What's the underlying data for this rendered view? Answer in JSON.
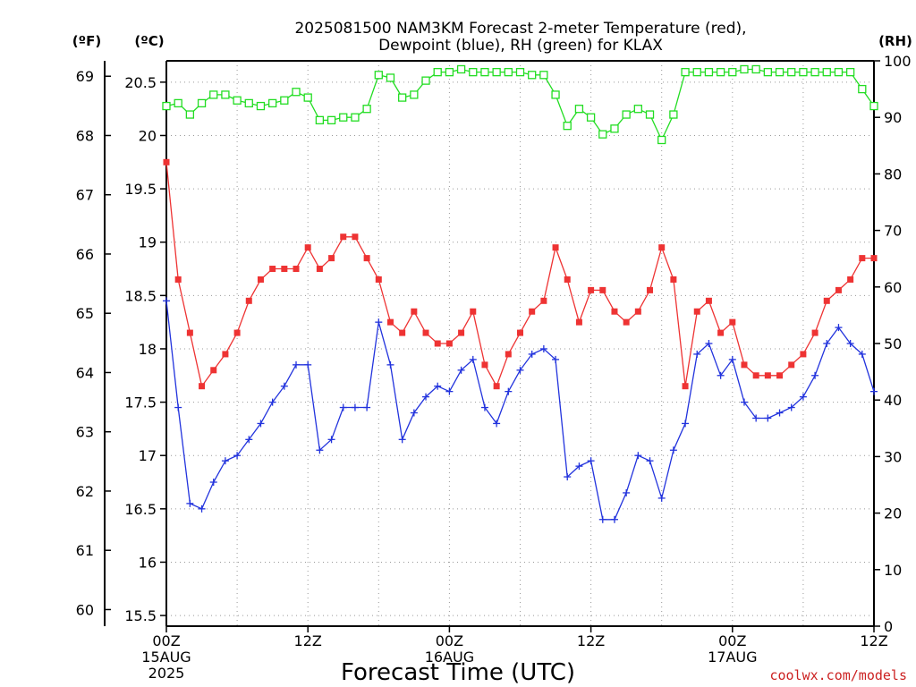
{
  "chart_data": {
    "type": "line",
    "title_line1": "2025081500 NAM3KM Forecast 2-meter Temperature (red),",
    "title_line2": "Dewpoint (blue), RH (green) for KLAX",
    "xlabel": "Forecast Time (UTC)",
    "credit": "coolwx.com/models",
    "axis_units": {
      "f": "(ºF)",
      "c": "(ºC)",
      "rh": "(RH)"
    },
    "x_range_hours": [
      0,
      60
    ],
    "y_celsius_range": [
      15.4,
      20.7
    ],
    "y_rh_range": [
      0,
      100
    ],
    "celsius_ticks": [
      "15.5",
      "16",
      "16.5",
      "17",
      "17.5",
      "18",
      "18.5",
      "19",
      "19.5",
      "20",
      "20.5"
    ],
    "fahrenheit_ticks": [
      "60",
      "61",
      "62",
      "63",
      "64",
      "65",
      "66",
      "67",
      "68",
      "69"
    ],
    "rh_ticks": [
      "0",
      "10",
      "20",
      "30",
      "40",
      "50",
      "60",
      "70",
      "80",
      "90",
      "100"
    ],
    "x_ticks": [
      {
        "hour": 0,
        "line1": "00Z",
        "line2": "15AUG",
        "line3": "2025"
      },
      {
        "hour": 12,
        "line1": "12Z",
        "line2": "",
        "line3": ""
      },
      {
        "hour": 24,
        "line1": "00Z",
        "line2": "16AUG",
        "line3": ""
      },
      {
        "hour": 36,
        "line1": "12Z",
        "line2": "",
        "line3": ""
      },
      {
        "hour": 48,
        "line1": "00Z",
        "line2": "17AUG",
        "line3": ""
      },
      {
        "hour": 60,
        "line1": "12Z",
        "line2": "",
        "line3": ""
      }
    ],
    "colors": {
      "temperature": "#ee3333",
      "dewpoint": "#2233dd",
      "rh": "#22dd22"
    },
    "series": [
      {
        "key": "temperature",
        "axis": "celsius",
        "marker": "filled-square",
        "values": [
          19.75,
          18.65,
          18.15,
          17.65,
          17.8,
          17.95,
          18.15,
          18.45,
          18.65,
          18.75,
          18.75,
          18.75,
          18.95,
          18.75,
          18.85,
          19.05,
          19.05,
          18.85,
          18.65,
          18.25,
          18.15,
          18.35,
          18.15,
          18.05,
          18.05,
          18.15,
          18.35,
          17.85,
          17.65,
          17.95,
          18.15,
          18.35,
          18.45,
          18.95,
          18.65,
          18.25,
          18.55,
          18.55,
          18.35,
          18.25,
          18.35,
          18.55,
          18.95,
          18.65,
          17.65,
          18.35,
          18.45,
          18.15,
          18.25,
          17.85,
          17.75,
          17.75,
          17.75,
          17.85,
          17.95,
          18.15,
          18.45,
          18.55,
          18.65,
          18.85,
          18.85
        ]
      },
      {
        "key": "dewpoint",
        "axis": "celsius",
        "marker": "plus",
        "values": [
          18.45,
          17.45,
          16.55,
          16.5,
          16.75,
          16.95,
          17.0,
          17.15,
          17.3,
          17.5,
          17.65,
          17.85,
          17.85,
          17.05,
          17.15,
          17.45,
          17.45,
          17.45,
          18.25,
          17.85,
          17.15,
          17.4,
          17.55,
          17.65,
          17.6,
          17.8,
          17.9,
          17.45,
          17.3,
          17.6,
          17.8,
          17.95,
          18.0,
          17.9,
          16.8,
          16.9,
          16.95,
          16.4,
          16.4,
          16.65,
          17.0,
          16.95,
          16.6,
          17.05,
          17.3,
          17.95,
          18.05,
          17.75,
          17.9,
          17.5,
          17.35,
          17.35,
          17.4,
          17.45,
          17.55,
          17.75,
          18.05,
          18.2,
          18.05,
          17.95,
          17.6
        ]
      },
      {
        "key": "rh",
        "axis": "rh",
        "marker": "open-square",
        "values": [
          92,
          92.5,
          90.5,
          92.5,
          94,
          94,
          93,
          92.5,
          92,
          92.5,
          93,
          94.5,
          93.5,
          89.5,
          89.5,
          90,
          90,
          91.5,
          97.5,
          97,
          93.5,
          94,
          96.5,
          98,
          98,
          98.5,
          98,
          98,
          98,
          98,
          98,
          97.5,
          97.5,
          94,
          88.5,
          91.5,
          90,
          87,
          88,
          90.5,
          91.5,
          90.5,
          86,
          90.5,
          98,
          98,
          98,
          98,
          98,
          98.5,
          98.5,
          98,
          98,
          98,
          98,
          98,
          98,
          98,
          98,
          95,
          92
        ]
      }
    ]
  }
}
